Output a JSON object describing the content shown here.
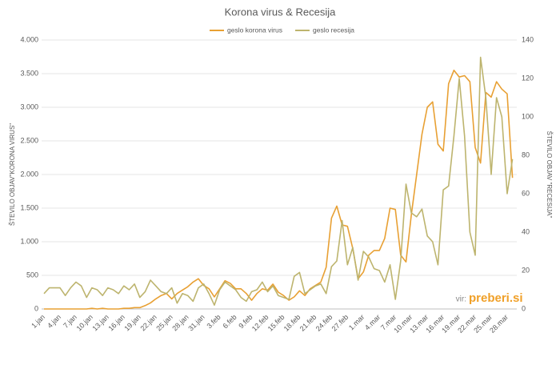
{
  "chart_data": {
    "type": "line",
    "title": "Korona virus & Recesija",
    "y_label": "ŠTEVILO OBJAV\"KORONA VIRUS\"",
    "y2_label": "ŠTEVILO OBJAV \"RECESIJA\"",
    "source_label": "vir:",
    "source_name": "preberi.si",
    "categories": [
      "1.jan",
      null,
      null,
      "4.jan",
      null,
      null,
      "7.jan",
      null,
      null,
      "10.jan",
      null,
      null,
      "13.jan",
      null,
      null,
      "16.jan",
      null,
      null,
      "19.jan",
      null,
      null,
      "22.jan",
      null,
      null,
      "25.jan",
      null,
      null,
      "28.jan",
      null,
      null,
      "31.jan",
      null,
      null,
      "3.feb",
      null,
      null,
      "6.feb",
      null,
      null,
      "9.feb",
      null,
      null,
      "12.feb",
      null,
      null,
      "15.feb",
      null,
      null,
      "18.feb",
      null,
      null,
      "21.feb",
      null,
      null,
      "24.feb",
      null,
      null,
      "27.feb",
      null,
      null,
      "1.mar",
      null,
      null,
      "4.mar",
      null,
      null,
      "7.mar",
      null,
      null,
      "10.mar",
      null,
      null,
      "13.mar",
      null,
      null,
      "16.mar",
      null,
      null,
      "19.mar",
      null,
      null,
      "22.mar",
      null,
      null,
      "25.mar",
      null,
      null,
      "28.mar",
      null
    ],
    "ylim": [
      0,
      4000
    ],
    "yticks": [
      0,
      500,
      {
        "value": 1000,
        "label": "1.000"
      },
      {
        "value": 1500,
        "label": "1.500"
      },
      {
        "value": 2000,
        "label": "2.000"
      },
      {
        "value": 2500,
        "label": "2.500"
      },
      {
        "value": 3000,
        "label": "3.000"
      },
      {
        "value": 3500,
        "label": "3.500"
      },
      {
        "value": 4000,
        "label": "4.000"
      }
    ],
    "y2lim": [
      0,
      140
    ],
    "y2ticks": [
      0,
      20,
      40,
      60,
      80,
      100,
      120,
      140
    ],
    "grid": true,
    "series": [
      {
        "name": "geslo korona virus",
        "color": "#e8a033",
        "values": [
          0,
          0,
          0,
          0,
          0,
          0,
          0,
          0,
          0,
          10,
          0,
          10,
          0,
          0,
          0,
          10,
          10,
          20,
          20,
          50,
          90,
          150,
          200,
          230,
          150,
          230,
          280,
          330,
          400,
          450,
          350,
          300,
          180,
          300,
          420,
          380,
          300,
          300,
          230,
          130,
          230,
          300,
          280,
          370,
          250,
          200,
          130,
          180,
          270,
          200,
          300,
          350,
          400,
          620,
          1350,
          1530,
          1250,
          1230,
          900,
          450,
          550,
          800,
          870,
          870,
          1050,
          1500,
          1480,
          800,
          700,
          1400,
          2000,
          2600,
          3000,
          3080,
          2450,
          2350,
          3350,
          3550,
          3450,
          3470,
          3380,
          2400,
          2170,
          3220,
          3150,
          3380,
          3270,
          3200,
          1950
        ]
      },
      {
        "name": "geslo recesija",
        "color": "#bdb46e",
        "axis": "y2",
        "values": [
          8,
          11,
          11,
          11,
          7,
          11,
          14,
          12,
          6,
          11,
          10,
          7,
          11,
          10,
          8,
          12,
          10,
          13,
          6,
          9,
          15,
          12,
          9,
          8,
          11,
          3,
          8,
          7,
          4,
          11,
          13,
          8,
          2,
          10,
          14,
          12,
          10,
          6,
          4,
          9,
          10,
          14,
          9,
          12,
          7,
          6,
          5,
          17,
          19,
          8,
          10,
          12,
          13,
          8,
          22,
          25,
          46,
          23,
          32,
          15,
          30,
          27,
          21,
          20,
          14,
          23,
          5,
          25,
          65,
          50,
          48,
          52,
          38,
          35,
          23,
          62,
          64,
          90,
          120,
          90,
          40,
          28,
          131,
          110,
          70,
          110,
          100,
          60,
          78
        ]
      }
    ]
  }
}
